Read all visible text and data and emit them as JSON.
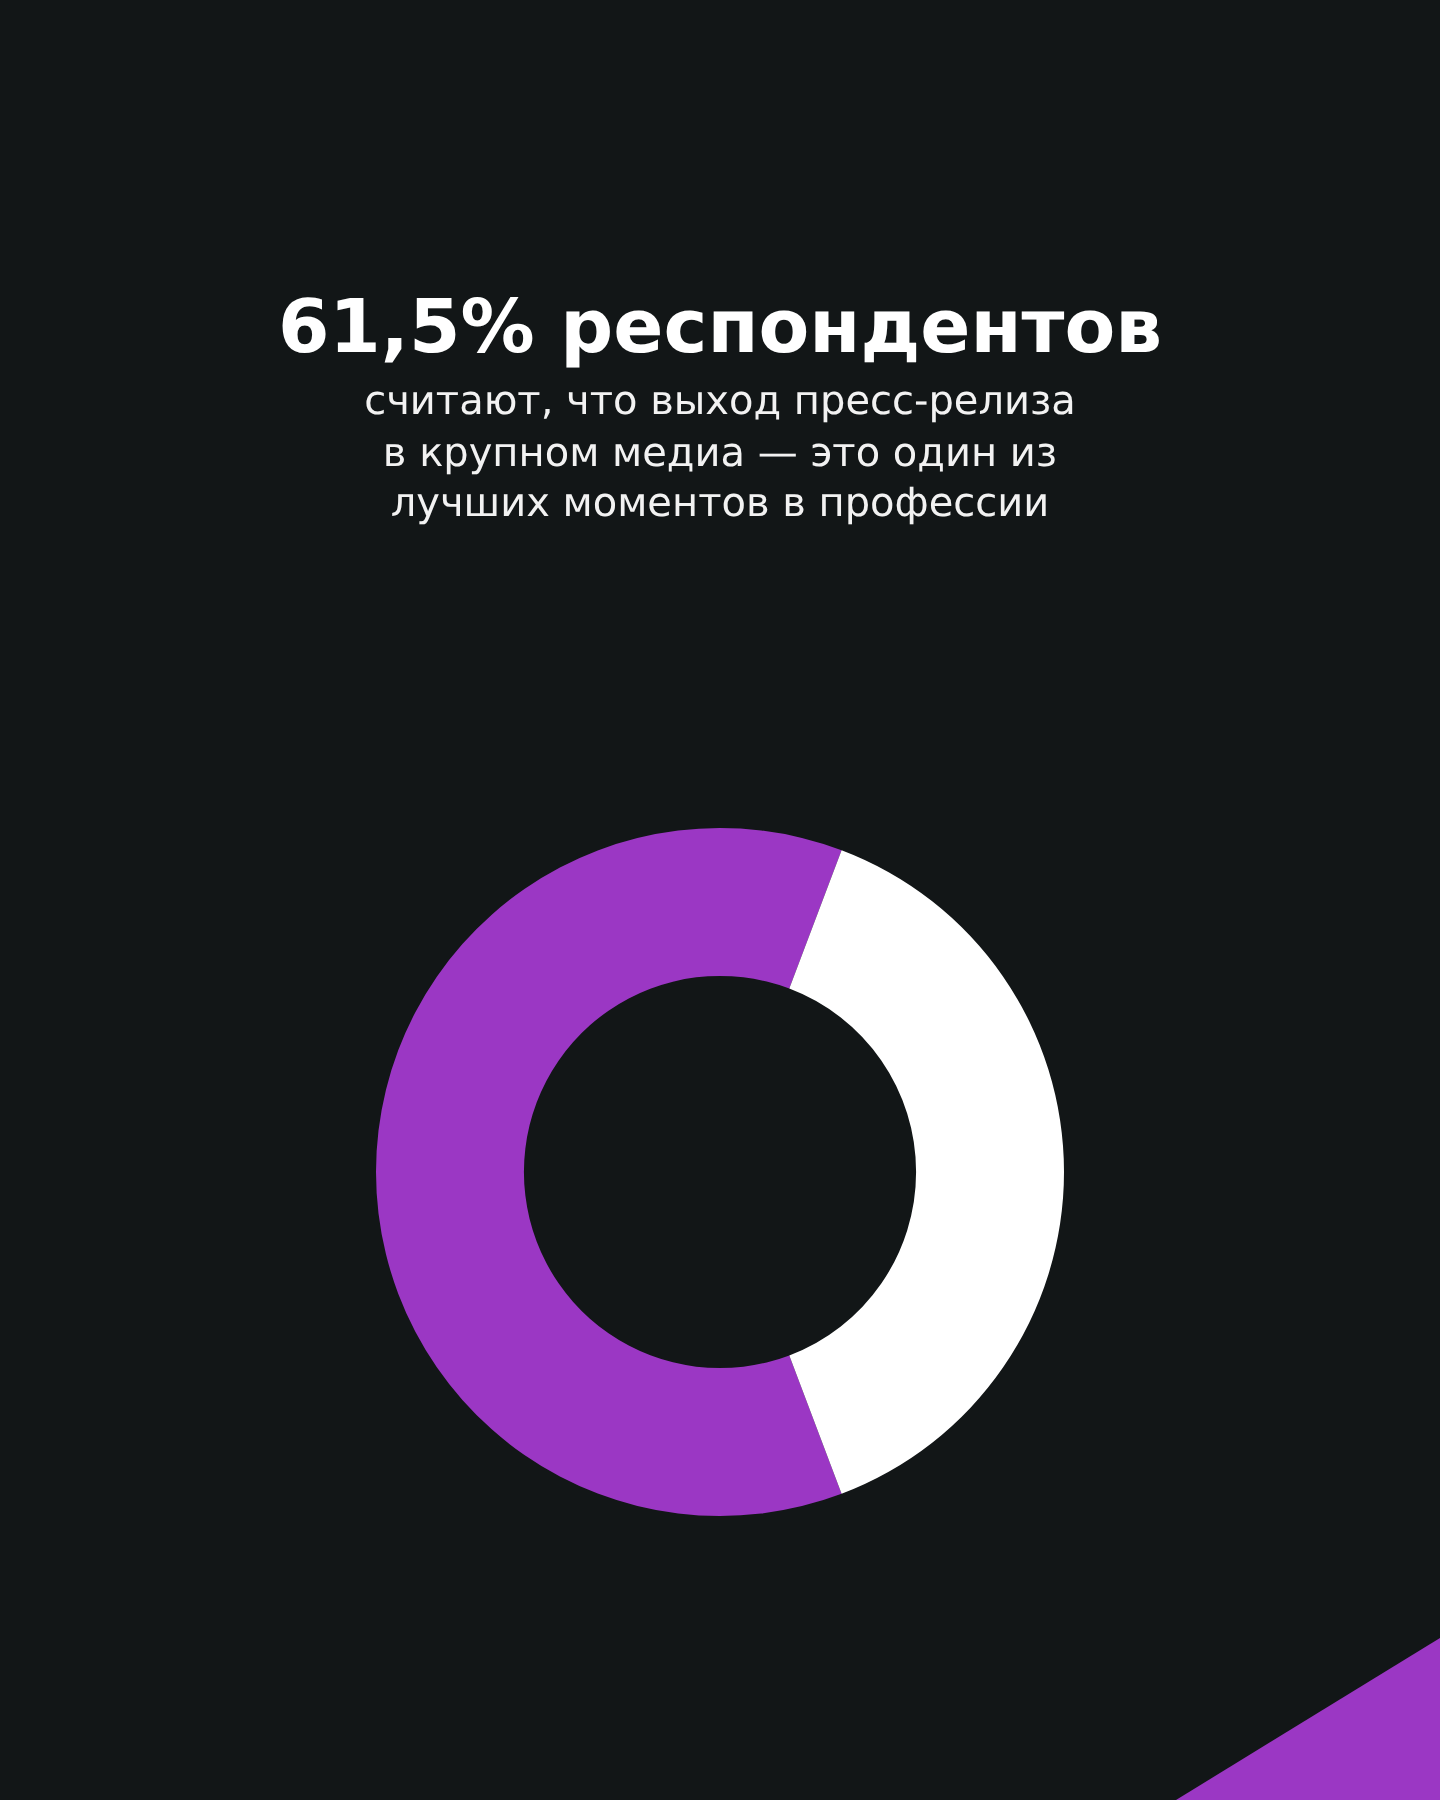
{
  "chart_data": {
    "type": "donut",
    "title": "61,5% респондентов",
    "subtitle": "считают, что выход пресс-релиза в крупном медиа — это один из лучших моментов в профессии",
    "categories": [
      null,
      null
    ],
    "values": [
      61.5,
      38.5
    ],
    "colors": [
      "#9b37c4",
      "#ffffff"
    ]
  }
}
